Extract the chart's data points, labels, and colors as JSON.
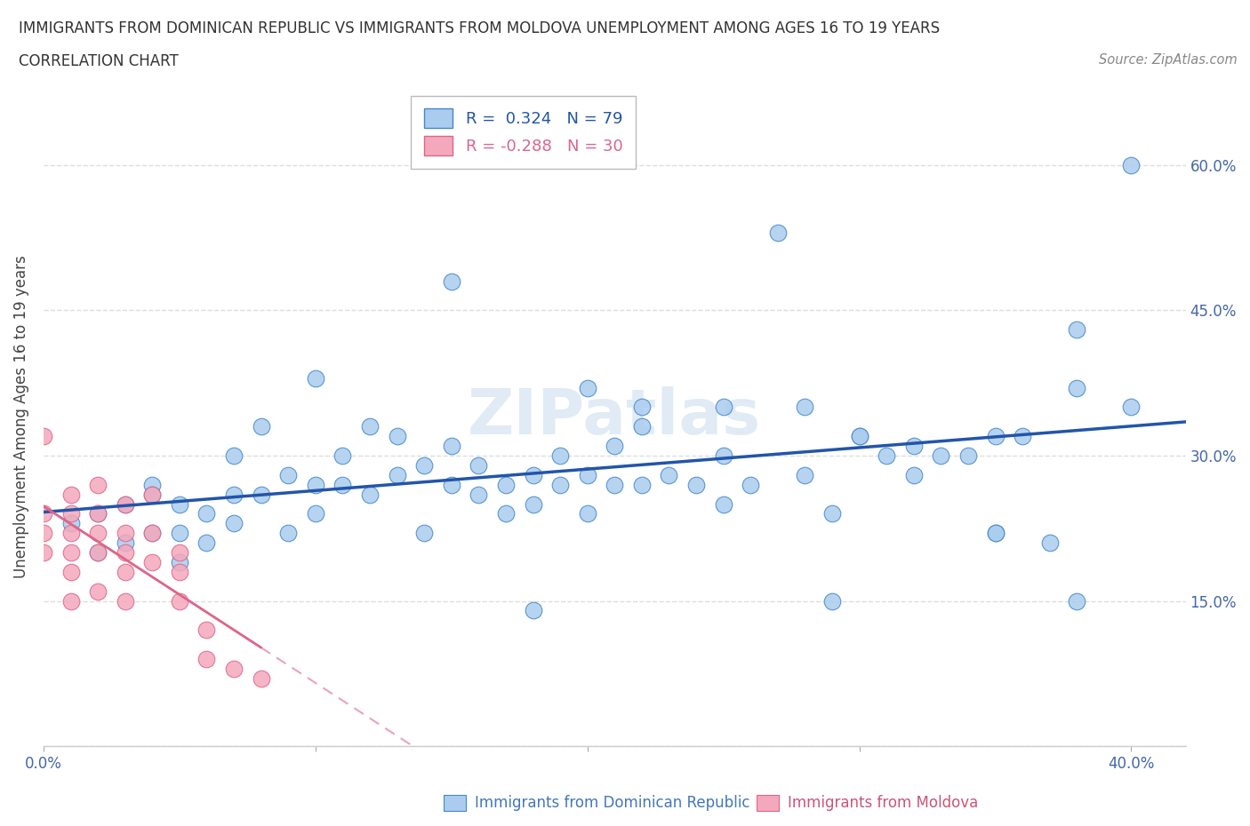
{
  "title_line1": "IMMIGRANTS FROM DOMINICAN REPUBLIC VS IMMIGRANTS FROM MOLDOVA UNEMPLOYMENT AMONG AGES 16 TO 19 YEARS",
  "title_line2": "CORRELATION CHART",
  "source_text": "Source: ZipAtlas.com",
  "ylabel": "Unemployment Among Ages 16 to 19 years",
  "xlim": [
    0.0,
    0.42
  ],
  "ylim": [
    0.0,
    0.68
  ],
  "x_tick_positions": [
    0.0,
    0.1,
    0.2,
    0.3,
    0.4
  ],
  "x_tick_labels": [
    "0.0%",
    "",
    "",
    "",
    "40.0%"
  ],
  "y_tick_positions": [
    0.0,
    0.15,
    0.3,
    0.45,
    0.6
  ],
  "y_tick_labels": [
    "",
    "15.0%",
    "30.0%",
    "45.0%",
    "60.0%"
  ],
  "color_blue": "#aaccee",
  "color_pink": "#f4a8bc",
  "edge_blue": "#4488cc",
  "edge_pink": "#dd6688",
  "line_blue": "#2255aa",
  "line_pink": "#dd6688",
  "R_blue": 0.324,
  "N_blue": 79,
  "R_pink": -0.288,
  "N_pink": 30,
  "blue_x": [
    0.01,
    0.02,
    0.02,
    0.03,
    0.03,
    0.04,
    0.04,
    0.04,
    0.05,
    0.05,
    0.05,
    0.06,
    0.06,
    0.07,
    0.07,
    0.07,
    0.08,
    0.08,
    0.09,
    0.09,
    0.1,
    0.1,
    0.11,
    0.11,
    0.12,
    0.12,
    0.13,
    0.13,
    0.14,
    0.14,
    0.15,
    0.15,
    0.16,
    0.16,
    0.17,
    0.17,
    0.18,
    0.18,
    0.19,
    0.19,
    0.2,
    0.2,
    0.21,
    0.21,
    0.22,
    0.22,
    0.23,
    0.24,
    0.25,
    0.26,
    0.27,
    0.28,
    0.29,
    0.3,
    0.31,
    0.32,
    0.33,
    0.34,
    0.35,
    0.36,
    0.37,
    0.38,
    0.15,
    0.2,
    0.25,
    0.3,
    0.35,
    0.1,
    0.22,
    0.28,
    0.32,
    0.38,
    0.4,
    0.4,
    0.38,
    0.35,
    0.29,
    0.25,
    0.18
  ],
  "blue_y": [
    0.23,
    0.24,
    0.2,
    0.25,
    0.21,
    0.27,
    0.22,
    0.26,
    0.25,
    0.22,
    0.19,
    0.24,
    0.21,
    0.3,
    0.26,
    0.23,
    0.33,
    0.26,
    0.28,
    0.22,
    0.27,
    0.24,
    0.3,
    0.27,
    0.26,
    0.33,
    0.32,
    0.28,
    0.22,
    0.29,
    0.27,
    0.31,
    0.29,
    0.26,
    0.24,
    0.27,
    0.28,
    0.25,
    0.3,
    0.27,
    0.28,
    0.24,
    0.31,
    0.27,
    0.27,
    0.33,
    0.28,
    0.27,
    0.3,
    0.27,
    0.53,
    0.28,
    0.24,
    0.32,
    0.3,
    0.28,
    0.3,
    0.3,
    0.22,
    0.32,
    0.21,
    0.43,
    0.48,
    0.37,
    0.35,
    0.32,
    0.32,
    0.38,
    0.35,
    0.35,
    0.31,
    0.37,
    0.35,
    0.6,
    0.15,
    0.22,
    0.15,
    0.25,
    0.14
  ],
  "pink_x": [
    0.0,
    0.0,
    0.0,
    0.0,
    0.01,
    0.01,
    0.01,
    0.01,
    0.01,
    0.01,
    0.02,
    0.02,
    0.02,
    0.02,
    0.02,
    0.03,
    0.03,
    0.03,
    0.03,
    0.03,
    0.04,
    0.04,
    0.04,
    0.05,
    0.05,
    0.05,
    0.06,
    0.06,
    0.07,
    0.08
  ],
  "pink_y": [
    0.32,
    0.24,
    0.22,
    0.2,
    0.26,
    0.24,
    0.22,
    0.2,
    0.18,
    0.15,
    0.27,
    0.24,
    0.22,
    0.2,
    0.16,
    0.25,
    0.22,
    0.2,
    0.18,
    0.15,
    0.26,
    0.22,
    0.19,
    0.2,
    0.18,
    0.15,
    0.12,
    0.09,
    0.08,
    0.07
  ],
  "bottom_label_blue": "Immigrants from Dominican Republic",
  "bottom_label_pink": "Immigrants from Moldova",
  "legend_text_blue": "R =  0.324   N = 79",
  "legend_text_pink": "R = -0.288   N = 30"
}
